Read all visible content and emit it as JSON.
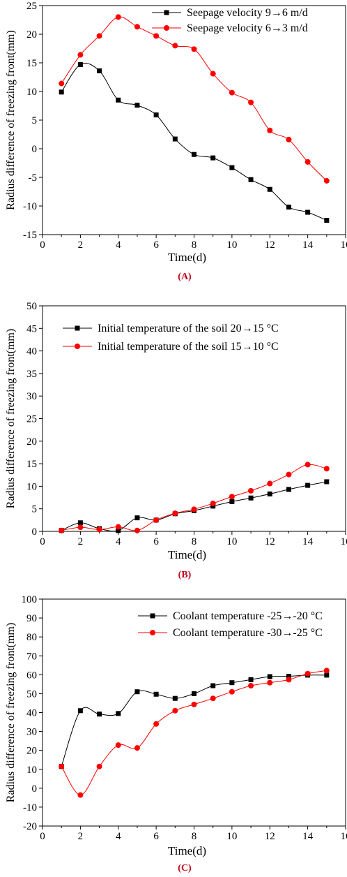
{
  "chart_data": [
    {
      "id": "A",
      "type": "line",
      "panel_label": "(A)",
      "xlabel": "Time(d)",
      "ylabel": "Radius difference of freezing front(mm)",
      "xlim": [
        0,
        16
      ],
      "ylim": [
        -15,
        25
      ],
      "xticks": [
        0,
        2,
        4,
        6,
        8,
        10,
        12,
        14,
        16
      ],
      "yticks": [
        -15,
        -10,
        -5,
        0,
        5,
        10,
        15,
        20,
        25
      ],
      "grid": false,
      "legend_position": "top-right",
      "series": [
        {
          "name": "Seepage velocity 9→6 m/d",
          "color": "#000000",
          "marker": "square",
          "x": [
            1,
            2,
            3,
            4,
            5,
            6,
            7,
            8,
            9,
            10,
            11,
            12,
            13,
            14,
            15
          ],
          "y": [
            9.9,
            14.7,
            13.6,
            8.5,
            7.6,
            5.9,
            1.7,
            -1.0,
            -1.6,
            -3.3,
            -5.4,
            -7.1,
            -10.2,
            -11.1,
            -12.5
          ]
        },
        {
          "name": "Seepage velocity 6→3 m/d",
          "color": "#ff0000",
          "marker": "circle",
          "x": [
            1,
            2,
            3,
            4,
            5,
            6,
            7,
            8,
            9,
            10,
            11,
            12,
            13,
            14,
            15
          ],
          "y": [
            11.4,
            16.4,
            19.7,
            23.0,
            21.3,
            19.7,
            18.0,
            17.4,
            13.1,
            9.8,
            8.1,
            3.2,
            1.6,
            -2.3,
            -5.6
          ]
        }
      ]
    },
    {
      "id": "B",
      "type": "line",
      "panel_label": "(B)",
      "xlabel": "Time(d)",
      "ylabel": "Radius difference of freezing front(mm)",
      "xlim": [
        0,
        16
      ],
      "ylim": [
        0,
        50
      ],
      "xticks": [
        0,
        2,
        4,
        6,
        8,
        10,
        12,
        14,
        16
      ],
      "yticks": [
        0,
        5,
        10,
        15,
        20,
        25,
        30,
        35,
        40,
        45,
        50
      ],
      "grid": false,
      "legend_position": "top-left",
      "series": [
        {
          "name": "Initial temperature of the soil 20→15 °C",
          "color": "#000000",
          "marker": "square",
          "x": [
            1,
            2,
            3,
            4,
            5,
            6,
            7,
            8,
            9,
            10,
            11,
            12,
            13,
            14,
            15
          ],
          "y": [
            0.2,
            1.9,
            0.6,
            0.2,
            3.0,
            2.5,
            3.9,
            4.6,
            5.6,
            6.6,
            7.4,
            8.3,
            9.3,
            10.2,
            11.0
          ]
        },
        {
          "name": "Initial temperature of the soil 15→10 °C",
          "color": "#ff0000",
          "marker": "circle",
          "x": [
            1,
            2,
            3,
            4,
            5,
            6,
            7,
            8,
            9,
            10,
            11,
            12,
            13,
            14,
            15
          ],
          "y": [
            0.2,
            0.9,
            0.4,
            1.0,
            0.2,
            2.5,
            4.0,
            4.9,
            6.2,
            7.7,
            9.0,
            10.6,
            12.6,
            14.8,
            13.9
          ]
        }
      ]
    },
    {
      "id": "C",
      "type": "line",
      "panel_label": "(C)",
      "xlabel": "Time(d)",
      "ylabel": "Radius difference of freezing front(mm)",
      "xlim": [
        0,
        16
      ],
      "ylim": [
        -20,
        100
      ],
      "xticks": [
        0,
        2,
        4,
        6,
        8,
        10,
        12,
        14,
        16
      ],
      "yticks": [
        -20,
        -10,
        0,
        10,
        20,
        30,
        40,
        50,
        60,
        70,
        80,
        90,
        100
      ],
      "grid": false,
      "legend_position": "top-right",
      "series": [
        {
          "name": "Coolant temperature -25→-20 °C",
          "color": "#000000",
          "marker": "square",
          "x": [
            1,
            2,
            3,
            4,
            5,
            6,
            7,
            8,
            9,
            10,
            11,
            12,
            13,
            14,
            15
          ],
          "y": [
            11.5,
            41.0,
            39.2,
            39.5,
            51.0,
            49.7,
            47.5,
            50.0,
            54.2,
            55.8,
            57.4,
            59.0,
            59.2,
            59.8,
            59.8
          ]
        },
        {
          "name": "Coolant temperature -30→-25 °C",
          "color": "#ff0000",
          "marker": "circle",
          "x": [
            1,
            2,
            3,
            4,
            5,
            6,
            7,
            8,
            9,
            10,
            11,
            12,
            13,
            14,
            15
          ],
          "y": [
            11.5,
            -3.6,
            11.5,
            22.8,
            21.3,
            34.0,
            41.0,
            44.3,
            47.5,
            51.0,
            54.2,
            55.8,
            57.4,
            60.6,
            62.2
          ]
        }
      ]
    }
  ]
}
